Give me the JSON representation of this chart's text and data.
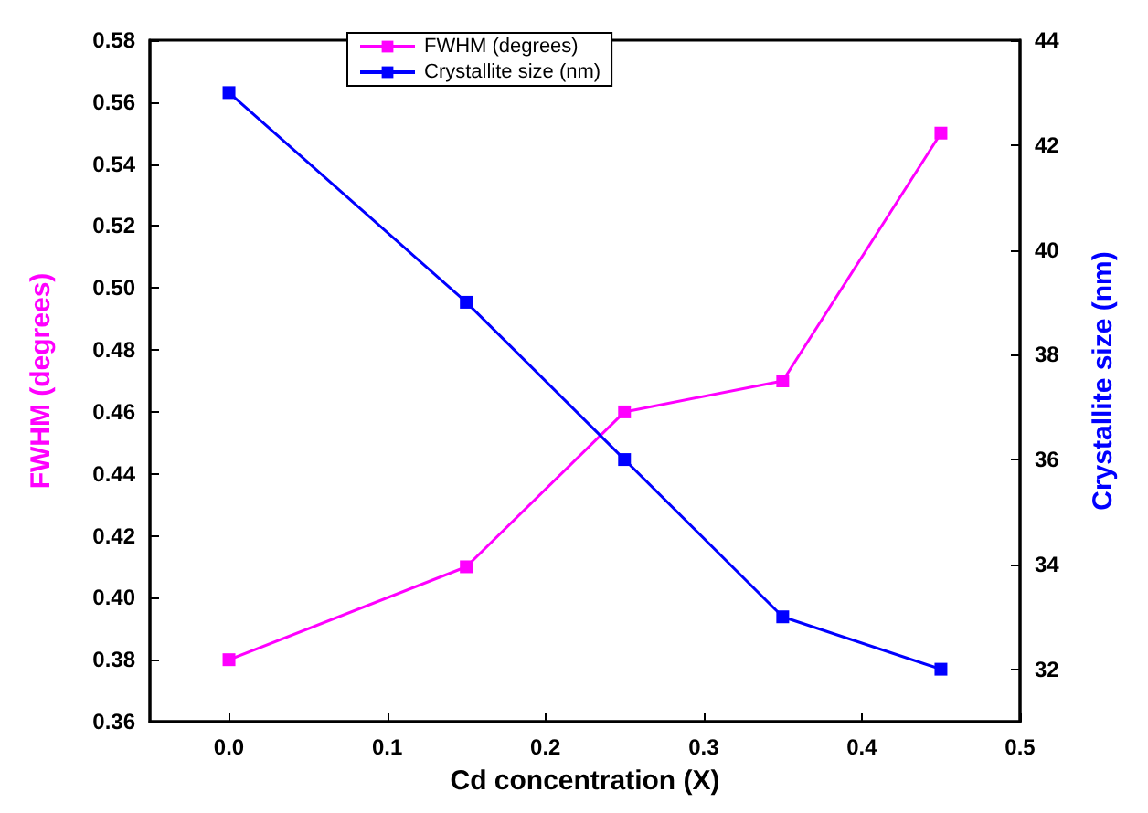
{
  "chart_data": {
    "type": "line",
    "xlabel": "Cd concentration (X)",
    "ylabel": "FWHM (degrees)",
    "y2label": "Crystallite size (nm)",
    "x": [
      0,
      0.15,
      0.25,
      0.35,
      0.45
    ],
    "series": [
      {
        "name": "FWHM (degrees)",
        "color": "#ff00ff",
        "values": [
          0.38,
          0.41,
          0.46,
          0.47,
          0.55
        ]
      },
      {
        "name": "Crystallite size (nm)",
        "color": "#0000ff",
        "values": [
          43,
          39,
          36,
          33,
          32
        ],
        "axis": "y2"
      }
    ],
    "xlim": [
      -0.05,
      0.5
    ],
    "xticks": [
      {
        "value": 0,
        "label": "0.0"
      },
      0.1,
      0.2,
      0.3,
      0.4,
      0.5
    ],
    "ylim": [
      0.36,
      0.58
    ],
    "yticks": [
      0.36,
      0.38,
      {
        "value": 0.4,
        "label": "0.40"
      },
      0.42,
      0.44,
      0.46,
      0.48,
      {
        "value": 0.5,
        "label": "0.50"
      },
      0.52,
      0.54,
      0.56,
      0.58
    ],
    "y2lim": [
      31,
      44
    ],
    "y2ticks": [
      32,
      34,
      36,
      38,
      40,
      42,
      44
    ],
    "legend": "top",
    "marker": "square",
    "line_style": "solid",
    "grid": false
  }
}
